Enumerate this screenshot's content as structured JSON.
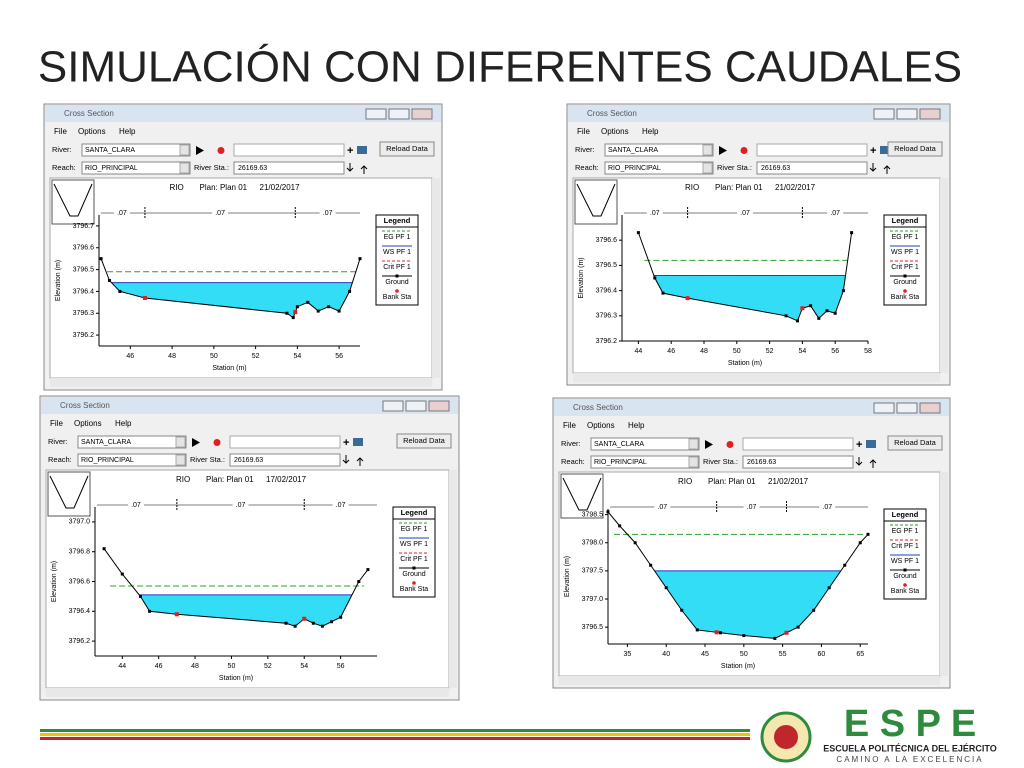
{
  "title": "SIMULACIÓN CON DIFERENTES CAUDALES",
  "plot_colors": {
    "eg": "#2e9e2e",
    "ws": "#1f3fbf",
    "water": "#33ddf5",
    "ground": "#000000",
    "bank": "#e02020"
  },
  "windows": [
    {
      "window_title": "Cross Section",
      "menu": [
        "File",
        "Options",
        "Help"
      ],
      "river_label": "River:",
      "river": "SANTA_CLARA",
      "reach_label": "Reach:",
      "reach": "RIO_PRINCIPAL",
      "station_label": "River Sta.:",
      "station": "26169.63",
      "reload": "Reload Data",
      "plot": {
        "river": "RIO",
        "plan": "Plan: Plan 01",
        "date": "21/02/2017",
        "n_values": [
          ".07",
          ".07",
          ".07"
        ],
        "legend_title": "Legend",
        "legend": [
          {
            "name": "EG PF 1",
            "color": "#2e9e2e",
            "style": "dashed"
          },
          {
            "name": "WS PF 1",
            "color": "#1f3fbf",
            "style": "solid"
          },
          {
            "name": "Crit PF 1",
            "color": "#e02020",
            "style": "dashed"
          },
          {
            "name": "Ground",
            "color": "#000000",
            "style": "line-square"
          },
          {
            "name": "Bank Sta",
            "color": "#e02020",
            "style": "dot"
          }
        ],
        "xlabel": "Station (m)",
        "ylabel": "Elevation (m)",
        "xlim": [
          44.5,
          57
        ],
        "xticks": [
          46,
          48,
          50,
          52,
          54,
          56
        ],
        "ylim": [
          3796.15,
          3796.75
        ],
        "yticks": [
          3796.2,
          3796.3,
          3796.4,
          3796.5,
          3796.6,
          3796.7
        ],
        "ground": {
          "x": [
            44.6,
            45,
            45.5,
            46.7,
            53.5,
            53.8,
            54,
            54.5,
            55,
            55.5,
            56,
            56.5,
            57
          ],
          "y": [
            3796.55,
            3796.45,
            3796.4,
            3796.37,
            3796.3,
            3796.28,
            3796.33,
            3796.35,
            3796.31,
            3796.33,
            3796.31,
            3796.4,
            3796.55
          ]
        },
        "ws": 3796.44,
        "eg": 3796.49,
        "bank_stations": [
          46.7,
          53.9
        ]
      }
    },
    {
      "window_title": "Cross Section",
      "menu": [
        "File",
        "Options",
        "Help"
      ],
      "river_label": "River:",
      "river": "SANTA_CLARA",
      "reach_label": "Reach:",
      "reach": "RIO_PRINCIPAL",
      "station_label": "River Sta.:",
      "station": "26169.63",
      "reload": "Reload Data",
      "plot": {
        "river": "RIO",
        "plan": "Plan: Plan 01",
        "date": "21/02/2017",
        "n_values": [
          ".07",
          ".07",
          ".07"
        ],
        "legend_title": "Legend",
        "legend": [
          {
            "name": "EG PF 1",
            "color": "#2e9e2e",
            "style": "dashed"
          },
          {
            "name": "WS PF 1",
            "color": "#1f3fbf",
            "style": "solid"
          },
          {
            "name": "Crit PF 1",
            "color": "#e02020",
            "style": "dashed"
          },
          {
            "name": "Ground",
            "color": "#000000",
            "style": "line-square"
          },
          {
            "name": "Bank Sta",
            "color": "#e02020",
            "style": "dot"
          }
        ],
        "xlabel": "Station (m)",
        "ylabel": "Elevation (m)",
        "xlim": [
          43,
          58
        ],
        "xticks": [
          44,
          46,
          48,
          50,
          52,
          54,
          56,
          58
        ],
        "ylim": [
          3796.2,
          3796.7
        ],
        "yticks": [
          3796.2,
          3796.3,
          3796.4,
          3796.5,
          3796.6
        ],
        "ground": {
          "x": [
            44,
            45,
            45.5,
            47,
            53,
            53.7,
            54,
            54.5,
            55,
            55.5,
            56,
            56.5,
            57
          ],
          "y": [
            3796.63,
            3796.45,
            3796.39,
            3796.37,
            3796.3,
            3796.28,
            3796.33,
            3796.34,
            3796.29,
            3796.32,
            3796.31,
            3796.4,
            3796.63
          ]
        },
        "ws": 3796.46,
        "eg": 3796.52,
        "bank_stations": [
          47,
          54
        ]
      }
    },
    {
      "window_title": "Cross Section",
      "menu": [
        "File",
        "Options",
        "Help"
      ],
      "river_label": "River:",
      "river": "SANTA_CLARA",
      "reach_label": "Reach:",
      "reach": "RIO_PRINCIPAL",
      "station_label": "River Sta.:",
      "station": "26169.63",
      "reload": "Reload Data",
      "plot": {
        "river": "RIO",
        "plan": "Plan: Plan 01",
        "date": "17/02/2017",
        "n_values": [
          ".07",
          ".07",
          ".07"
        ],
        "legend_title": "Legend",
        "legend": [
          {
            "name": "EG PF 1",
            "color": "#2e9e2e",
            "style": "dashed"
          },
          {
            "name": "WS PF 1",
            "color": "#1f3fbf",
            "style": "solid"
          },
          {
            "name": "Crit PF 1",
            "color": "#e02020",
            "style": "dashed"
          },
          {
            "name": "Ground",
            "color": "#000000",
            "style": "line-square"
          },
          {
            "name": "Bank Sta",
            "color": "#e02020",
            "style": "dot"
          }
        ],
        "xlabel": "Station (m)",
        "ylabel": "Elevation (m)",
        "xlim": [
          42.5,
          58
        ],
        "xticks": [
          44,
          46,
          48,
          50,
          52,
          54,
          56
        ],
        "ylim": [
          3796.1,
          3797.1
        ],
        "yticks": [
          3796.2,
          3796.4,
          3796.6,
          3796.8,
          {
            "value": 3797,
            "label": "3797.0"
          }
        ],
        "ground": {
          "x": [
            43,
            44,
            45,
            45.5,
            47,
            53,
            53.5,
            54,
            54.5,
            55,
            55.5,
            56,
            57,
            57.5
          ],
          "y": [
            3796.82,
            3796.65,
            3796.5,
            3796.4,
            3796.38,
            3796.32,
            3796.3,
            3796.35,
            3796.32,
            3796.3,
            3796.33,
            3796.36,
            3796.6,
            3796.68
          ]
        },
        "ws": 3796.51,
        "eg": 3796.57,
        "bank_stations": [
          47,
          54
        ]
      }
    },
    {
      "window_title": "Cross Section",
      "menu": [
        "File",
        "Options",
        "Help"
      ],
      "river_label": "River:",
      "river": "SANTA_CLARA",
      "reach_label": "Reach:",
      "reach": "RIO_PRINCIPAL",
      "station_label": "River Sta.:",
      "station": "26169.63",
      "reload": "Reload Data",
      "plot": {
        "river": "RIO",
        "plan": "Plan: Plan 01",
        "date": "21/02/2017",
        "n_values": [
          ".07",
          ".07",
          ".07"
        ],
        "legend_title": "Legend",
        "legend": [
          {
            "name": "EG PF 1",
            "color": "#2e9e2e",
            "style": "dashed"
          },
          {
            "name": "Crit PF 1",
            "color": "#e02020",
            "style": "dashed"
          },
          {
            "name": "WS PF 1",
            "color": "#1f3fbf",
            "style": "solid"
          },
          {
            "name": "Ground",
            "color": "#000000",
            "style": "line-square"
          },
          {
            "name": "Bank Sta",
            "color": "#e02020",
            "style": "dot"
          }
        ],
        "xlabel": "Station (m)",
        "ylabel": "Elevation (m)",
        "xlim": [
          32.5,
          66
        ],
        "xticks": [
          35,
          40,
          45,
          50,
          55,
          60,
          65
        ],
        "ylim": [
          3796.2,
          3798.6
        ],
        "yticks": [
          3796.5,
          {
            "value": 3797,
            "label": "3797.0"
          },
          3797.5,
          {
            "value": 3798,
            "label": "3798.0"
          },
          3798.5
        ],
        "ground": {
          "x": [
            32.5,
            34,
            36,
            38,
            40,
            42,
            44,
            47,
            50,
            54,
            57,
            59,
            61,
            63,
            65,
            66
          ],
          "y": [
            3798.55,
            3798.3,
            3798,
            3797.6,
            3797.2,
            3796.8,
            3796.45,
            3796.4,
            3796.35,
            3796.3,
            3796.5,
            3796.8,
            3797.2,
            3797.6,
            3798,
            3798.15
          ]
        },
        "ws": 3797.5,
        "eg": 3798.15,
        "bank_stations": [
          46.5,
          55.5
        ]
      }
    }
  ],
  "footer": {
    "logo": "E S P E",
    "line1": "ESCUELA POLITÉCNICA DEL EJÉRCITO",
    "line2": "CAMINO A LA EXCELENCIA"
  }
}
